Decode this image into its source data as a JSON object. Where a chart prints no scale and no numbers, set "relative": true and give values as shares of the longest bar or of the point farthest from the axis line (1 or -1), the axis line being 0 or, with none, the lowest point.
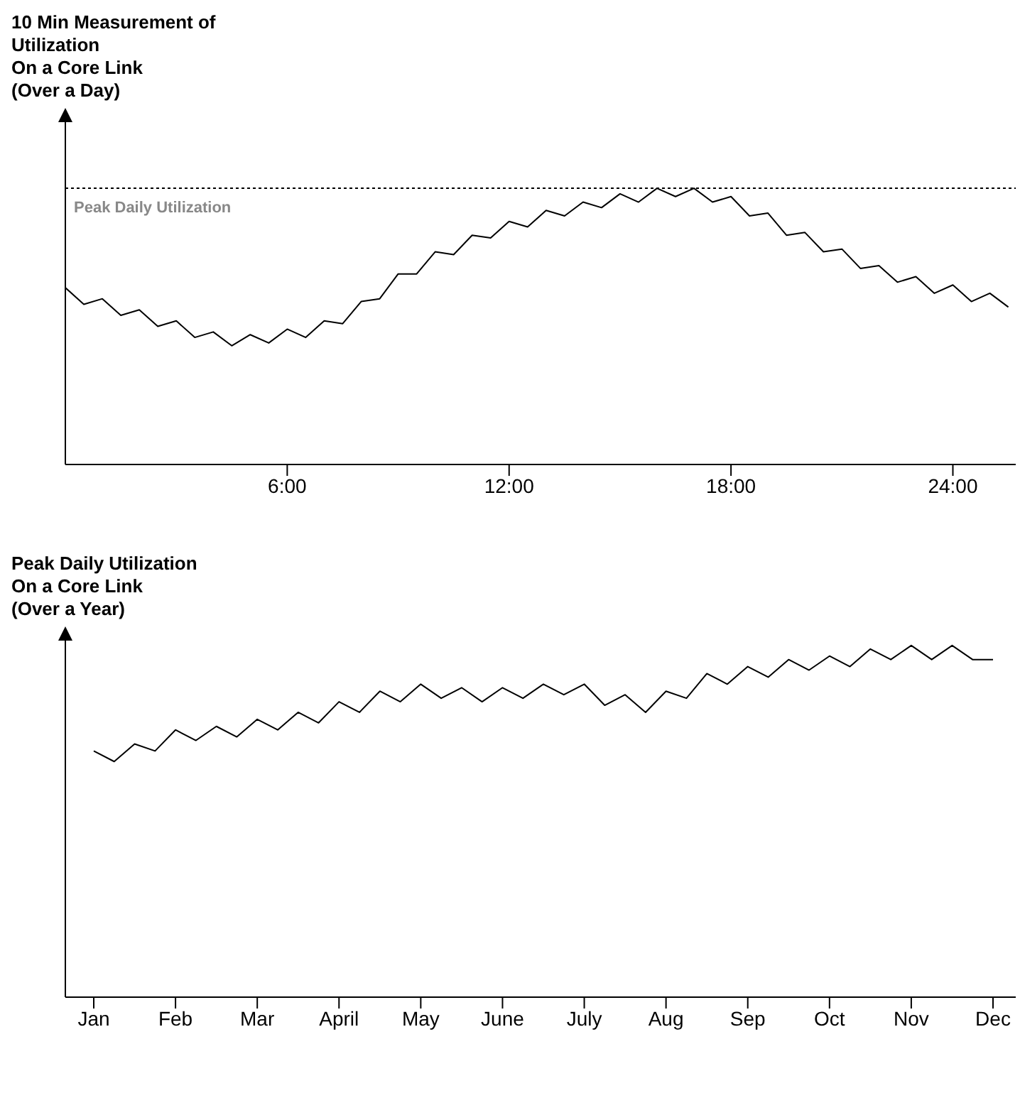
{
  "chart_data": [
    {
      "type": "line",
      "title": "10 Min Measurement of\nUtilization\nOn a Core Link\n(Over a Day)",
      "relative": true,
      "xlim": [
        0,
        25.7
      ],
      "xticks": [
        {
          "value": 6,
          "label": "6:00"
        },
        {
          "value": 12,
          "label": "12:00"
        },
        {
          "value": 18,
          "label": "18:00"
        },
        {
          "value": 24,
          "label": "24:00"
        }
      ],
      "ref_lines": [
        {
          "axis": "y",
          "value": 1,
          "label": "Peak Daily Utilization",
          "line_style": "dotted"
        }
      ],
      "x": [
        0,
        0.5,
        1,
        1.5,
        2,
        2.5,
        3,
        3.5,
        4,
        4.5,
        5,
        5.5,
        6,
        6.5,
        7,
        7.5,
        8,
        8.5,
        9,
        9.5,
        10,
        10.5,
        11,
        11.5,
        12,
        12.5,
        13,
        13.5,
        14,
        14.5,
        15,
        15.5,
        16,
        16.5,
        17,
        17.5,
        18,
        18.5,
        19,
        19.5,
        20,
        20.5,
        21,
        21.5,
        22,
        22.5,
        23,
        23.5,
        24,
        24.5,
        25,
        25.5
      ],
      "series": [
        {
          "color": "#000000",
          "values": [
            0.64,
            0.58,
            0.6,
            0.54,
            0.56,
            0.5,
            0.52,
            0.46,
            0.48,
            0.43,
            0.47,
            0.44,
            0.49,
            0.46,
            0.52,
            0.51,
            0.59,
            0.6,
            0.69,
            0.69,
            0.77,
            0.76,
            0.83,
            0.82,
            0.88,
            0.86,
            0.92,
            0.9,
            0.95,
            0.93,
            0.98,
            0.95,
            1.0,
            0.97,
            1.0,
            0.95,
            0.97,
            0.9,
            0.91,
            0.83,
            0.84,
            0.77,
            0.78,
            0.71,
            0.72,
            0.66,
            0.68,
            0.62,
            0.65,
            0.59,
            0.62,
            0.57
          ]
        }
      ]
    },
    {
      "type": "line",
      "title": "Peak Daily Utilization\nOn a Core Link\n(Over a Year)",
      "relative": true,
      "categories": [
        "Jan",
        null,
        null,
        null,
        "Feb",
        null,
        null,
        null,
        "Mar",
        null,
        null,
        null,
        "April",
        null,
        null,
        null,
        "May",
        null,
        null,
        null,
        "June",
        null,
        null,
        null,
        "July",
        null,
        null,
        null,
        "Aug",
        null,
        null,
        null,
        "Sep",
        null,
        null,
        null,
        "Oct",
        null,
        null,
        null,
        "Nov",
        null,
        null,
        null,
        "Dec"
      ],
      "series": [
        {
          "color": "#000000",
          "values": [
            0.7,
            0.67,
            0.72,
            0.7,
            0.76,
            0.73,
            0.77,
            0.74,
            0.79,
            0.76,
            0.81,
            0.78,
            0.84,
            0.81,
            0.87,
            0.84,
            0.89,
            0.85,
            0.88,
            0.84,
            0.88,
            0.85,
            0.89,
            0.86,
            0.89,
            0.83,
            0.86,
            0.81,
            0.87,
            0.85,
            0.92,
            0.89,
            0.94,
            0.91,
            0.96,
            0.93,
            0.97,
            0.94,
            0.99,
            0.96,
            1.0,
            0.96,
            1.0,
            0.96,
            0.96
          ]
        }
      ]
    }
  ]
}
